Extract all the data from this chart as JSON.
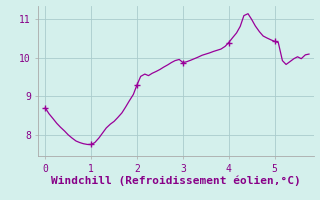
{
  "xlabel": "Windchill (Refroidissement éolien,°C)",
  "bg_color": "#d4f0ec",
  "line_color": "#990099",
  "marker_color": "#990099",
  "grid_color": "#aacccc",
  "axis_color": "#aaaaaa",
  "label_color": "#880088",
  "xlim": [
    -0.15,
    5.85
  ],
  "ylim": [
    7.45,
    11.35
  ],
  "xticks": [
    0,
    1,
    2,
    3,
    4,
    5
  ],
  "yticks": [
    8,
    9,
    10,
    11
  ],
  "x": [
    0.0,
    0.08,
    0.17,
    0.25,
    0.33,
    0.42,
    0.5,
    0.58,
    0.67,
    0.75,
    0.83,
    0.92,
    1.0,
    1.08,
    1.17,
    1.25,
    1.33,
    1.42,
    1.5,
    1.58,
    1.67,
    1.75,
    1.83,
    1.92,
    2.0,
    2.08,
    2.17,
    2.25,
    2.33,
    2.42,
    2.5,
    2.58,
    2.67,
    2.75,
    2.83,
    2.92,
    3.0,
    3.08,
    3.17,
    3.25,
    3.33,
    3.42,
    3.5,
    3.58,
    3.67,
    3.75,
    3.83,
    3.92,
    4.0,
    4.08,
    4.17,
    4.25,
    4.33,
    4.42,
    4.5,
    4.58,
    4.67,
    4.75,
    4.83,
    4.92,
    5.0,
    5.08,
    5.17,
    5.25,
    5.33,
    5.42,
    5.5,
    5.58,
    5.67,
    5.75
  ],
  "y": [
    8.7,
    8.55,
    8.42,
    8.3,
    8.2,
    8.1,
    8.0,
    7.92,
    7.84,
    7.8,
    7.77,
    7.75,
    7.75,
    7.8,
    7.92,
    8.05,
    8.18,
    8.28,
    8.35,
    8.45,
    8.57,
    8.72,
    8.88,
    9.05,
    9.3,
    9.52,
    9.58,
    9.54,
    9.6,
    9.65,
    9.7,
    9.76,
    9.82,
    9.88,
    9.93,
    9.96,
    9.88,
    9.9,
    9.94,
    9.98,
    10.02,
    10.07,
    10.1,
    10.13,
    10.17,
    10.2,
    10.23,
    10.3,
    10.4,
    10.52,
    10.65,
    10.82,
    11.1,
    11.15,
    11.0,
    10.83,
    10.68,
    10.57,
    10.52,
    10.47,
    10.43,
    10.4,
    9.93,
    9.83,
    9.9,
    9.98,
    10.03,
    9.98,
    10.08,
    10.1
  ],
  "marker_x": [
    0.0,
    1.0,
    2.0,
    3.0,
    4.0,
    5.0
  ],
  "marker_y": [
    8.7,
    7.75,
    9.3,
    9.88,
    10.4,
    10.43
  ],
  "tick_fontsize": 7,
  "label_fontsize": 8
}
